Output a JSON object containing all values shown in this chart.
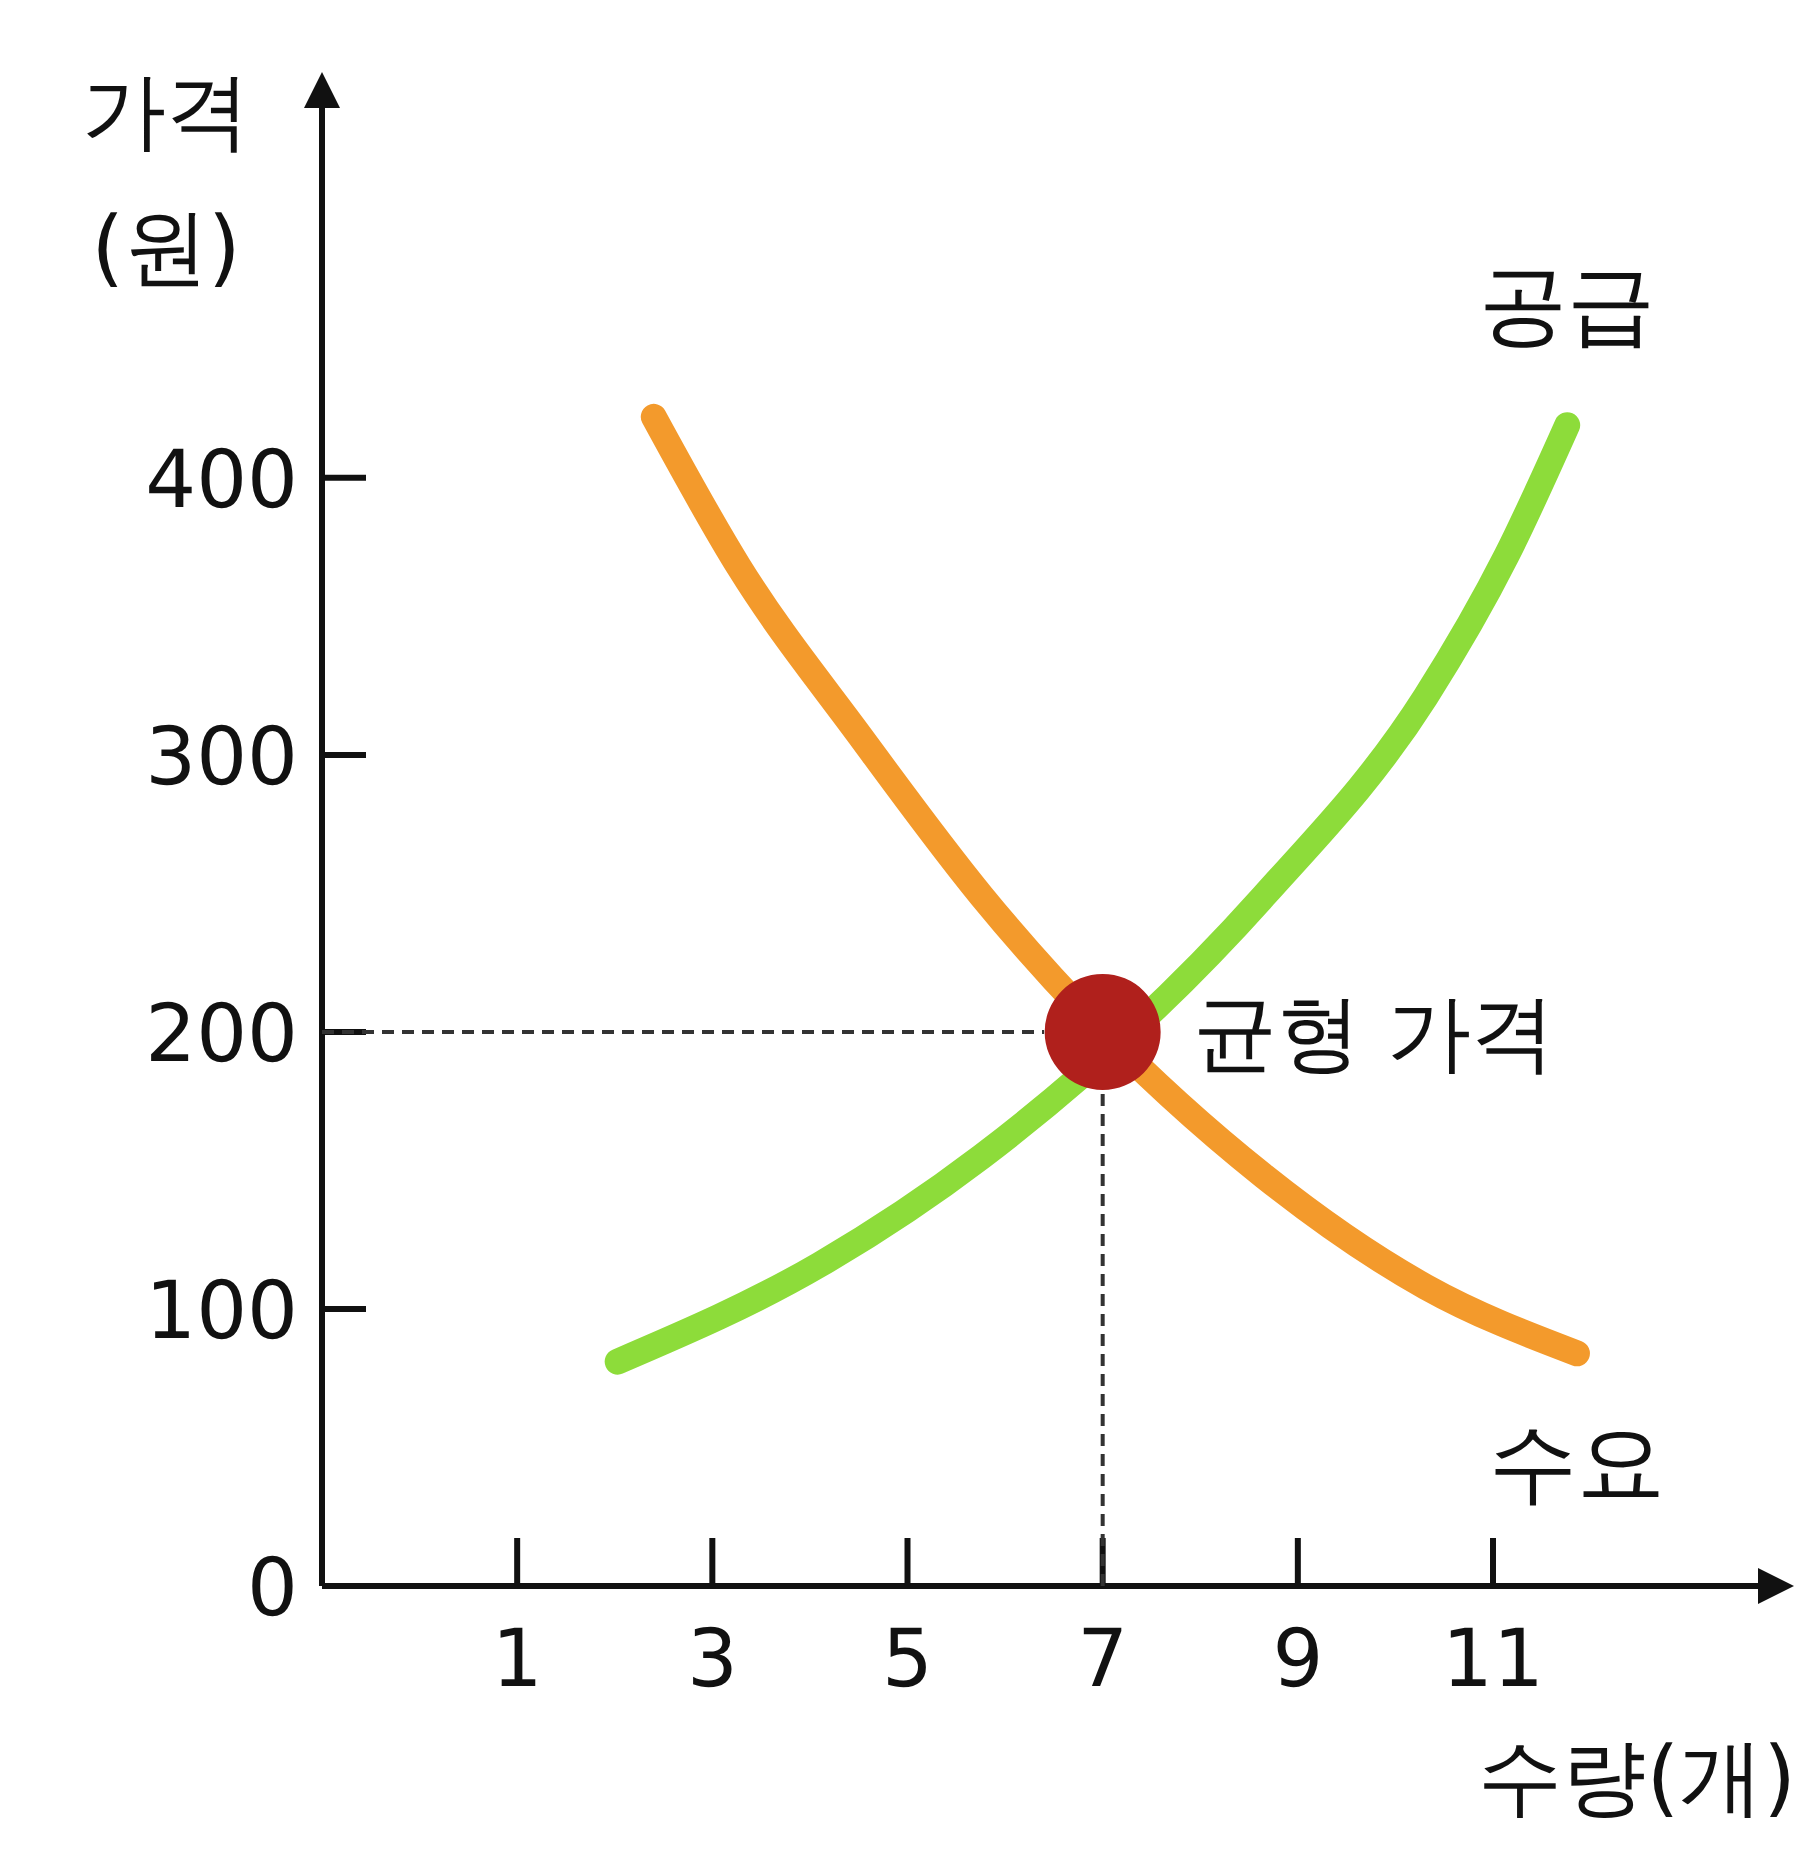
{
  "chart_data": {
    "type": "line",
    "xlabel": "수량(개)",
    "ylabel": "가격 (원)",
    "xlim": [
      -1,
      13.9
    ],
    "xticks": [
      1,
      3,
      5,
      7,
      9,
      11
    ],
    "ylim": [
      0,
      540
    ],
    "yticks": [
      0,
      100,
      200,
      300,
      400
    ],
    "grid": false,
    "marker": "none",
    "line_style": "solid",
    "annotations": [
      {
        "text": "균형 가격",
        "x": 7,
        "y": 200
      }
    ],
    "series": [
      {
        "name": "수요",
        "color": "#f39a2c",
        "x": [
          2.4,
          3.27,
          4.51,
          5.76,
          8.65,
          10.31,
          11.86
        ],
        "values": [
          422,
          368,
          307,
          249,
          148,
          108,
          84
        ]
      },
      {
        "name": "공급",
        "color": "#8ddc3a",
        "x": [
          2.03,
          4.1,
          5.76,
          8.65,
          10.31,
          11.14,
          11.76
        ],
        "values": [
          81,
          116,
          155,
          249,
          321,
          372,
          419
        ]
      },
      {
        "type": "line",
        "color": "#333333",
        "line_style": "dashed",
        "x": [
          -1,
          6.4
        ],
        "values": [
          200,
          200
        ]
      },
      {
        "type": "line",
        "color": "#333333",
        "line_style": "dashed",
        "x": [
          7,
          7
        ],
        "values": [
          0,
          180
        ]
      },
      {
        "type": "scatter",
        "color": "#b0201c",
        "marker": "circle",
        "x": [
          7
        ],
        "values": [
          200
        ]
      }
    ]
  }
}
